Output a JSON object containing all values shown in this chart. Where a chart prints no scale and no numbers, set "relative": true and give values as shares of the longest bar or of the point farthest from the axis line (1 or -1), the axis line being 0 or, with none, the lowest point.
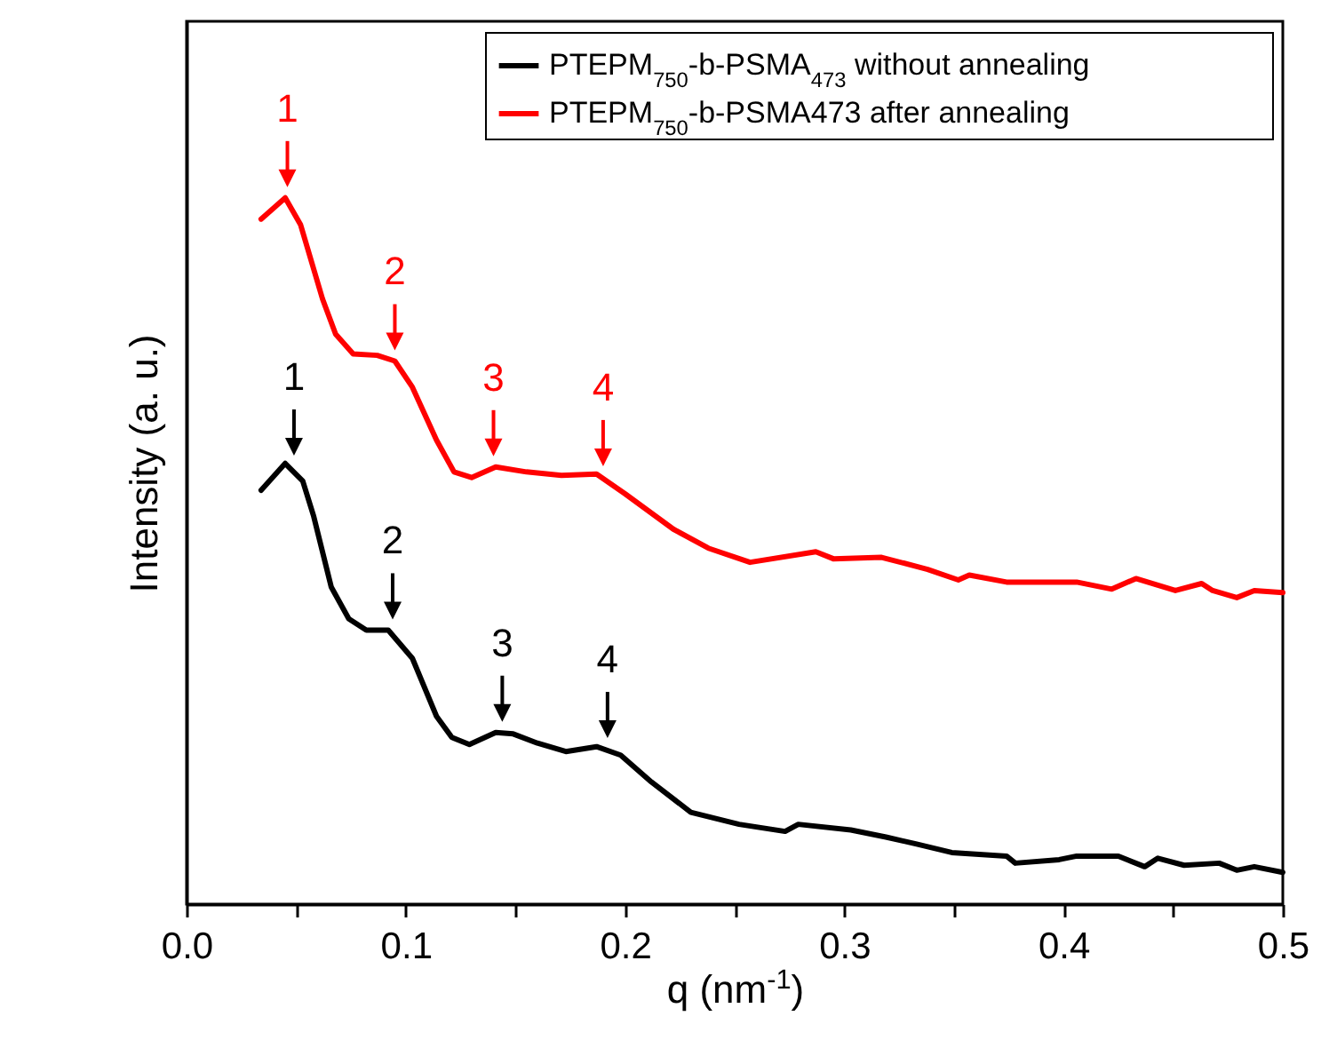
{
  "chart_data": {
    "type": "line",
    "relative": true,
    "xlabel": "q (nm$^{-1}$)",
    "ylabel": "Intensity (a. u.)",
    "xlim": [
      0,
      0.5
    ],
    "xticks": [
      {
        "value": 0,
        "label": "0.0"
      },
      {
        "value": 0.05,
        "label": null
      },
      0.1,
      {
        "value": 0.15,
        "label": null
      },
      0.2,
      {
        "value": 0.25,
        "label": null
      },
      0.3,
      {
        "value": 0.35,
        "label": null
      },
      0.4,
      {
        "value": 0.45,
        "label": null
      },
      0.5
    ],
    "legend": "top right",
    "grid": false,
    "marker": "none",
    "line_style": "solid",
    "series": [
      {
        "name": "PTEPM$_{750}$-b-PSMA$_{473}$ without annealing",
        "color": "#000000",
        "x": [
          0.034,
          0.045,
          0.053,
          0.058,
          0.066,
          0.074,
          0.082,
          0.092,
          0.103,
          0.114,
          0.121,
          0.129,
          0.141,
          0.149,
          0.16,
          0.173,
          0.187,
          0.198,
          0.212,
          0.23,
          0.252,
          0.273,
          0.279,
          0.303,
          0.319,
          0.333,
          0.349,
          0.374,
          0.378,
          0.398,
          0.406,
          0.425,
          0.437,
          0.443,
          0.455,
          0.471,
          0.479,
          0.487,
          0.5
        ],
        "values": [
          0.586,
          0.624,
          0.599,
          0.549,
          0.449,
          0.404,
          0.388,
          0.388,
          0.348,
          0.266,
          0.236,
          0.226,
          0.243,
          0.241,
          0.228,
          0.216,
          0.223,
          0.211,
          0.173,
          0.13,
          0.113,
          0.103,
          0.113,
          0.105,
          0.095,
          0.085,
          0.073,
          0.068,
          0.058,
          0.063,
          0.068,
          0.068,
          0.053,
          0.065,
          0.055,
          0.058,
          0.048,
          0.053,
          0.045
        ]
      },
      {
        "name": "PTEPM$_{750}$-b-PSMA473 after annealing",
        "color": "#ff0000",
        "x": [
          0.034,
          0.045,
          0.052,
          0.062,
          0.068,
          0.076,
          0.087,
          0.095,
          0.103,
          0.114,
          0.122,
          0.13,
          0.141,
          0.155,
          0.171,
          0.187,
          0.2,
          0.222,
          0.238,
          0.257,
          0.287,
          0.295,
          0.317,
          0.338,
          0.352,
          0.357,
          0.374,
          0.406,
          0.422,
          0.433,
          0.451,
          0.463,
          0.468,
          0.479,
          0.487,
          0.5
        ],
        "values": [
          0.97,
          1.0,
          0.962,
          0.857,
          0.807,
          0.779,
          0.777,
          0.769,
          0.732,
          0.657,
          0.612,
          0.604,
          0.619,
          0.612,
          0.607,
          0.609,
          0.581,
          0.531,
          0.504,
          0.484,
          0.499,
          0.489,
          0.491,
          0.474,
          0.459,
          0.466,
          0.456,
          0.456,
          0.446,
          0.461,
          0.444,
          0.454,
          0.444,
          0.434,
          0.444,
          0.441
        ]
      }
    ],
    "annotations": [
      {
        "text": "1",
        "x": 0.046,
        "y": 1.0
      },
      {
        "text": "2",
        "x": 0.095,
        "y": 0.769
      },
      {
        "text": "3",
        "x": 0.14,
        "y": 0.619
      },
      {
        "text": "4",
        "x": 0.19,
        "y": 0.605
      },
      {
        "text": "1",
        "x": 0.049,
        "y": 0.62
      },
      {
        "text": "2",
        "x": 0.094,
        "y": 0.388
      },
      {
        "text": "3",
        "x": 0.144,
        "y": 0.243
      },
      {
        "text": "4",
        "x": 0.192,
        "y": 0.22
      }
    ]
  }
}
